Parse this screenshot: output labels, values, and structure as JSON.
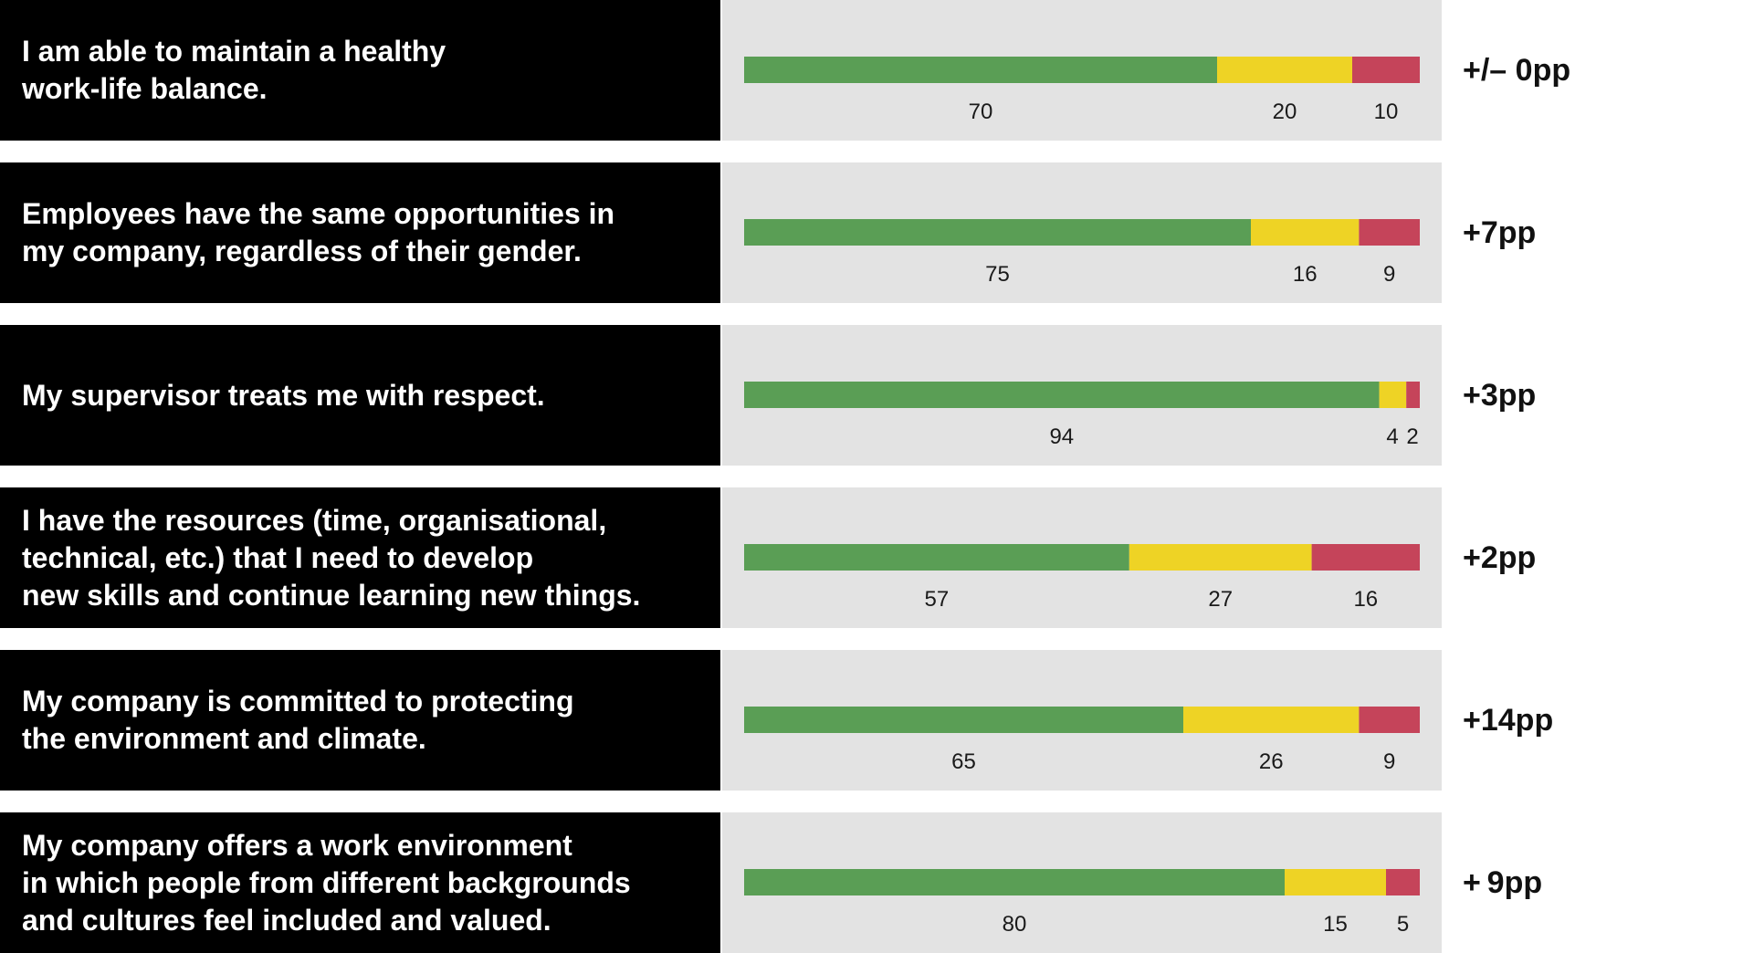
{
  "colors": {
    "agree": "#5a9e55",
    "neutral": "#eed325",
    "disagree": "#c5445a",
    "statement_bg": "#000000",
    "panel_bg": "#e3e3e3"
  },
  "chart_data": {
    "type": "bar",
    "orientation": "horizontal",
    "stacked": true,
    "scale": "percent",
    "xlim": [
      0,
      100
    ],
    "grid": false,
    "legend": "none",
    "categories": [
      "I am able to maintain a healthy\nwork-life balance.",
      "Employees have the same opportunities in\nmy company, regardless of their gender.",
      "My supervisor treats me with respect.",
      "I have the resources (time, organisational,\ntechnical, etc.) that I need to develop\nnew skills and continue learning new things.",
      "My company is committed to protecting\nthe environment and climate.",
      "My company offers a work environment\nin which people from different backgrounds\nand cultures feel included and valued."
    ],
    "series": [
      {
        "values": [
          70,
          75,
          94,
          57,
          65,
          80
        ],
        "color": "#5a9e55"
      },
      {
        "values": [
          20,
          16,
          4,
          27,
          26,
          15
        ],
        "color": "#eed325"
      },
      {
        "values": [
          10,
          9,
          2,
          16,
          9,
          5
        ],
        "color": "#c5445a"
      }
    ],
    "changes": [
      "+/– 0pp",
      "+7pp",
      "+3pp",
      "+2pp",
      "+14pp",
      "+ 9pp"
    ]
  }
}
